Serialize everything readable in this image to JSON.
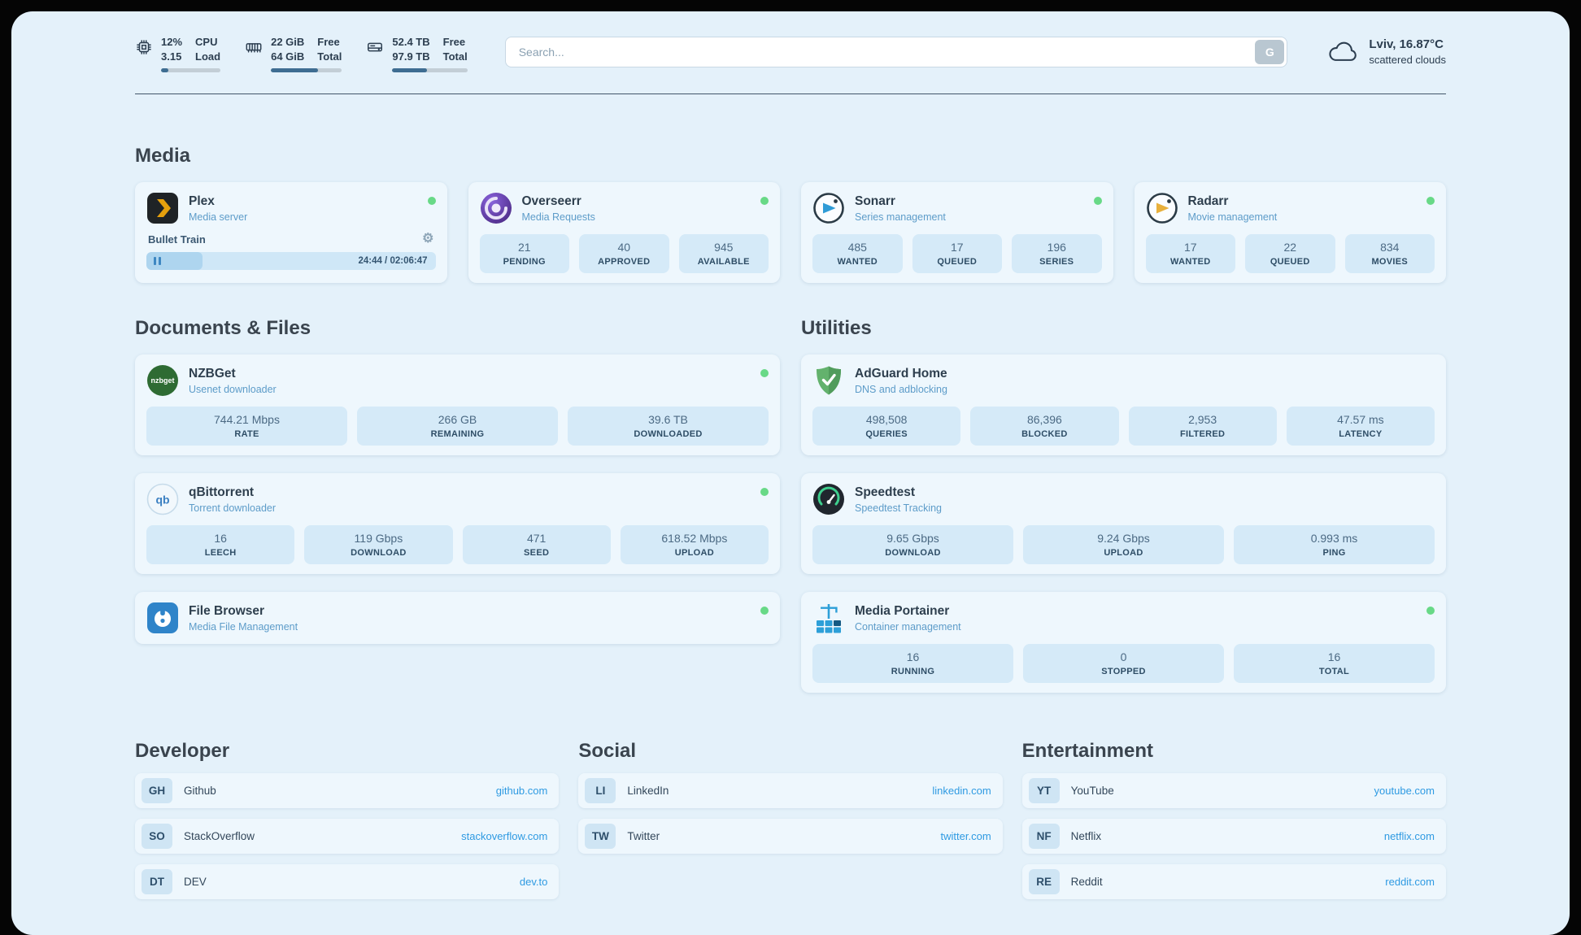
{
  "topbar": {
    "cpu": {
      "value_top": "12%",
      "value_bottom": "3.15",
      "label_top": "CPU",
      "label_bottom": "Load",
      "usage_percent": 12
    },
    "ram": {
      "value_top": "22 GiB",
      "value_bottom": "64 GiB",
      "label_top": "Free",
      "label_bottom": "Total",
      "usage_percent": 66
    },
    "disk": {
      "value_top": "52.4 TB",
      "value_bottom": "97.9 TB",
      "label_top": "Free",
      "label_bottom": "Total",
      "usage_percent": 46
    },
    "search": {
      "placeholder": "Search...",
      "button_label": "G"
    },
    "weather": {
      "location": "Lviv, 16.87°C",
      "condition": "scattered clouds"
    }
  },
  "sections": {
    "media": {
      "title": "Media",
      "apps": [
        {
          "name": "Plex",
          "subtitle": "Media server",
          "online": true,
          "player": {
            "track": "Bullet Train",
            "time": "24:44 / 02:06:47",
            "progress_percent": 19.5
          }
        },
        {
          "name": "Overseerr",
          "subtitle": "Media Requests",
          "online": true,
          "stats": [
            {
              "value": "21",
              "label": "PENDING"
            },
            {
              "value": "40",
              "label": "APPROVED"
            },
            {
              "value": "945",
              "label": "AVAILABLE"
            }
          ]
        },
        {
          "name": "Sonarr",
          "subtitle": "Series management",
          "online": true,
          "stats": [
            {
              "value": "485",
              "label": "WANTED"
            },
            {
              "value": "17",
              "label": "QUEUED"
            },
            {
              "value": "196",
              "label": "SERIES"
            }
          ]
        },
        {
          "name": "Radarr",
          "subtitle": "Movie management",
          "online": true,
          "stats": [
            {
              "value": "17",
              "label": "WANTED"
            },
            {
              "value": "22",
              "label": "QUEUED"
            },
            {
              "value": "834",
              "label": "MOVIES"
            }
          ]
        }
      ]
    },
    "documents": {
      "title": "Documents & Files",
      "apps": [
        {
          "name": "NZBGet",
          "subtitle": "Usenet downloader",
          "online": true,
          "stats": [
            {
              "value": "744.21 Mbps",
              "label": "RATE"
            },
            {
              "value": "266 GB",
              "label": "REMAINING"
            },
            {
              "value": "39.6 TB",
              "label": "DOWNLOADED"
            }
          ]
        },
        {
          "name": "qBittorrent",
          "subtitle": "Torrent downloader",
          "online": true,
          "stats": [
            {
              "value": "16",
              "label": "LEECH"
            },
            {
              "value": "119 Gbps",
              "label": "DOWNLOAD"
            },
            {
              "value": "471",
              "label": "SEED"
            },
            {
              "value": "618.52 Mbps",
              "label": "UPLOAD"
            }
          ]
        },
        {
          "name": "File Browser",
          "subtitle": "Media File Management",
          "online": true,
          "stats": []
        }
      ]
    },
    "utilities": {
      "title": "Utilities",
      "apps": [
        {
          "name": "AdGuard Home",
          "subtitle": "DNS and adblocking",
          "stats": [
            {
              "value": "498,508",
              "label": "QUERIES"
            },
            {
              "value": "86,396",
              "label": "BLOCKED"
            },
            {
              "value": "2,953",
              "label": "FILTERED"
            },
            {
              "value": "47.57 ms",
              "label": "LATENCY"
            }
          ]
        },
        {
          "name": "Speedtest",
          "subtitle": "Speedtest Tracking",
          "stats": [
            {
              "value": "9.65 Gbps",
              "label": "DOWNLOAD"
            },
            {
              "value": "9.24 Gbps",
              "label": "UPLOAD"
            },
            {
              "value": "0.993 ms",
              "label": "PING"
            }
          ]
        },
        {
          "name": "Media Portainer",
          "subtitle": "Container management",
          "online": true,
          "stats": [
            {
              "value": "16",
              "label": "RUNNING"
            },
            {
              "value": "0",
              "label": "STOPPED"
            },
            {
              "value": "16",
              "label": "TOTAL"
            }
          ]
        }
      ]
    }
  },
  "bookmarks": {
    "developer": {
      "title": "Developer",
      "items": [
        {
          "abbr": "GH",
          "name": "Github",
          "url": "github.com"
        },
        {
          "abbr": "SO",
          "name": "StackOverflow",
          "url": "stackoverflow.com"
        },
        {
          "abbr": "DT",
          "name": "DEV",
          "url": "dev.to"
        }
      ]
    },
    "social": {
      "title": "Social",
      "items": [
        {
          "abbr": "LI",
          "name": "LinkedIn",
          "url": "linkedin.com"
        },
        {
          "abbr": "TW",
          "name": "Twitter",
          "url": "twitter.com"
        }
      ]
    },
    "entertainment": {
      "title": "Entertainment",
      "items": [
        {
          "abbr": "YT",
          "name": "YouTube",
          "url": "youtube.com"
        },
        {
          "abbr": "NF",
          "name": "Netflix",
          "url": "netflix.com"
        },
        {
          "abbr": "RE",
          "name": "Reddit",
          "url": "reddit.com"
        }
      ]
    }
  },
  "colors": {
    "online_dot": "#68d987",
    "accent_link": "#2e9ae2",
    "bar_fill": "#3e6d92"
  }
}
